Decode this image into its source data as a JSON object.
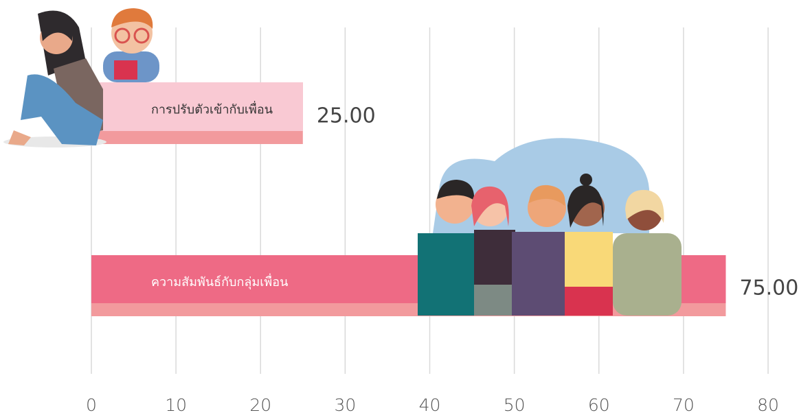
{
  "chart_data": {
    "type": "barh",
    "categories": [
      "การปรับตัวเข้ากับเพื่อน",
      "ความสัมพันธ์กับกลุ่มเพื่อน"
    ],
    "values": [
      25,
      75
    ],
    "value_labels": [
      "25.00",
      "75.00"
    ],
    "colors": [
      "#f9c9d3",
      "#ee6a85"
    ],
    "label_colors": [
      "#333333",
      "#ffffff"
    ],
    "xlim": [
      0,
      80
    ],
    "xticks": [
      0,
      10,
      20,
      30,
      40,
      50,
      60,
      70,
      80
    ],
    "grid": true
  }
}
